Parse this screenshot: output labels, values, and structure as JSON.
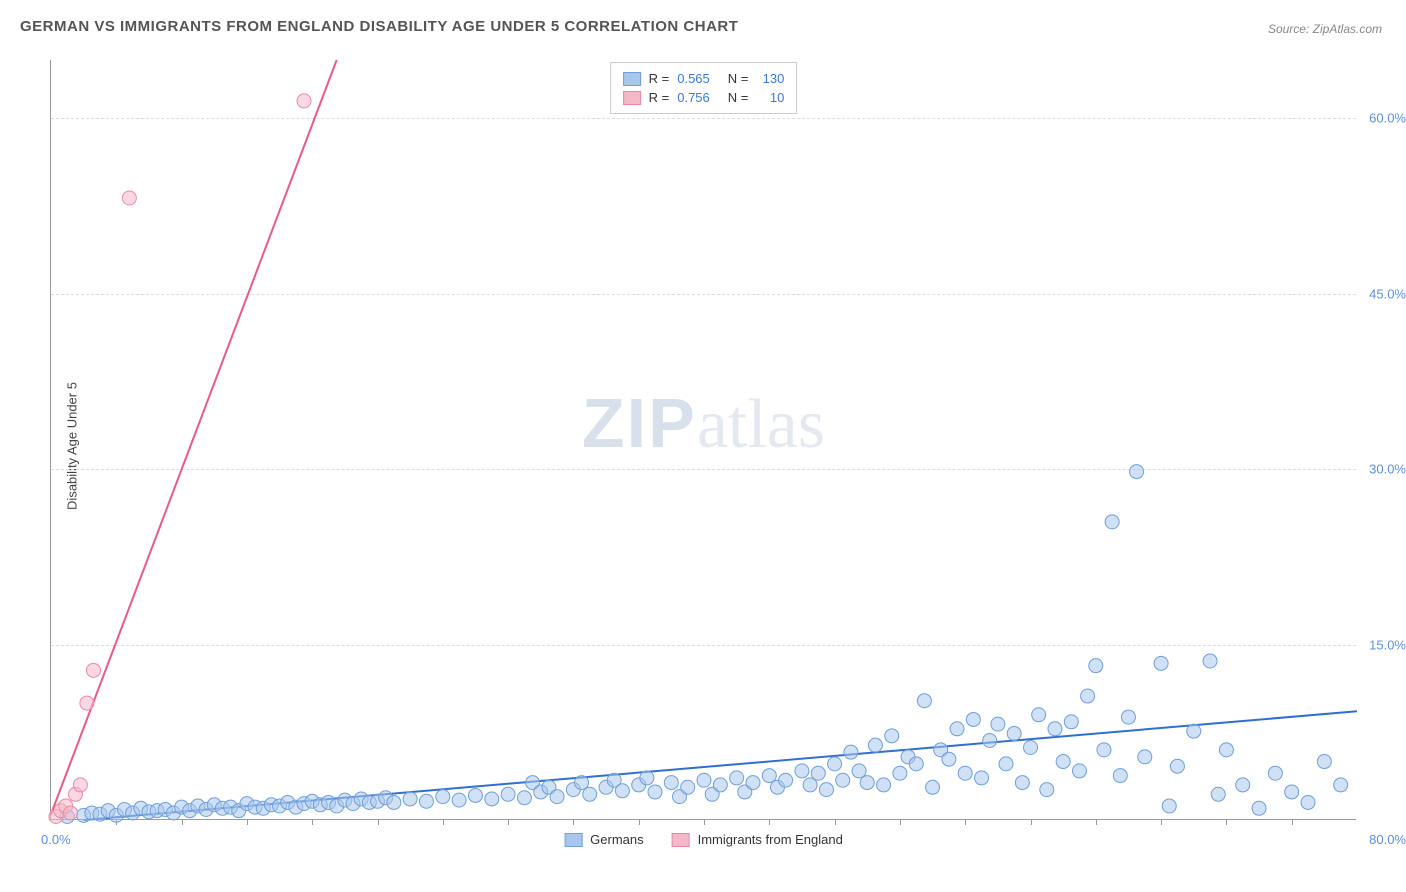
{
  "title": "GERMAN VS IMMIGRANTS FROM ENGLAND DISABILITY AGE UNDER 5 CORRELATION CHART",
  "source": "Source: ZipAtlas.com",
  "ylabel": "Disability Age Under 5",
  "watermark_zip": "ZIP",
  "watermark_atlas": "atlas",
  "chart": {
    "type": "scatter",
    "xlim": [
      0,
      80
    ],
    "ylim": [
      0,
      65
    ],
    "x_axis_label_left": "0.0%",
    "x_axis_label_right": "80.0%",
    "y_ticks": [
      15,
      30,
      45,
      60
    ],
    "y_tick_labels": [
      "15.0%",
      "30.0%",
      "45.0%",
      "60.0%"
    ],
    "x_minor_ticks": [
      4,
      8,
      12,
      16,
      20,
      24,
      28,
      32,
      36,
      40,
      44,
      48,
      52,
      56,
      60,
      64,
      68,
      72,
      76
    ],
    "background_color": "#ffffff",
    "grid_color": "#dddddd",
    "axis_color": "#999999",
    "series": [
      {
        "name": "Germans",
        "fill": "#a9c6ec",
        "stroke": "#6f9fd8",
        "fill_opacity": 0.55,
        "marker_radius": 7,
        "line_color": "#2e6fd1",
        "line_width": 2,
        "trend": {
          "x1": 2,
          "y1": 0,
          "x2": 80,
          "y2": 9.3
        },
        "R": "0.565",
        "N": "130",
        "points": [
          [
            1,
            0.3
          ],
          [
            2,
            0.4
          ],
          [
            2.5,
            0.6
          ],
          [
            3,
            0.5
          ],
          [
            3.5,
            0.8
          ],
          [
            4,
            0.4
          ],
          [
            4.5,
            0.9
          ],
          [
            5,
            0.6
          ],
          [
            5.5,
            1.0
          ],
          [
            6,
            0.7
          ],
          [
            6.5,
            0.8
          ],
          [
            7,
            0.9
          ],
          [
            7.5,
            0.6
          ],
          [
            8,
            1.1
          ],
          [
            8.5,
            0.8
          ],
          [
            9,
            1.2
          ],
          [
            9.5,
            0.9
          ],
          [
            10,
            1.3
          ],
          [
            10.5,
            1.0
          ],
          [
            11,
            1.1
          ],
          [
            11.5,
            0.8
          ],
          [
            12,
            1.4
          ],
          [
            12.5,
            1.1
          ],
          [
            13,
            1.0
          ],
          [
            13.5,
            1.3
          ],
          [
            14,
            1.2
          ],
          [
            14.5,
            1.5
          ],
          [
            15,
            1.1
          ],
          [
            15.5,
            1.4
          ],
          [
            16,
            1.6
          ],
          [
            16.5,
            1.3
          ],
          [
            17,
            1.5
          ],
          [
            17.5,
            1.2
          ],
          [
            18,
            1.7
          ],
          [
            18.5,
            1.4
          ],
          [
            19,
            1.8
          ],
          [
            19.5,
            1.5
          ],
          [
            20,
            1.6
          ],
          [
            20.5,
            1.9
          ],
          [
            21,
            1.5
          ],
          [
            22,
            1.8
          ],
          [
            23,
            1.6
          ],
          [
            24,
            2.0
          ],
          [
            25,
            1.7
          ],
          [
            26,
            2.1
          ],
          [
            27,
            1.8
          ],
          [
            28,
            2.2
          ],
          [
            29,
            1.9
          ],
          [
            29.5,
            3.2
          ],
          [
            30,
            2.4
          ],
          [
            30.5,
            2.8
          ],
          [
            31,
            2.0
          ],
          [
            32,
            2.6
          ],
          [
            32.5,
            3.2
          ],
          [
            33,
            2.2
          ],
          [
            34,
            2.8
          ],
          [
            34.5,
            3.4
          ],
          [
            35,
            2.5
          ],
          [
            36,
            3.0
          ],
          [
            36.5,
            3.6
          ],
          [
            37,
            2.4
          ],
          [
            38,
            3.2
          ],
          [
            38.5,
            2.0
          ],
          [
            39,
            2.8
          ],
          [
            40,
            3.4
          ],
          [
            40.5,
            2.2
          ],
          [
            41,
            3.0
          ],
          [
            42,
            3.6
          ],
          [
            42.5,
            2.4
          ],
          [
            43,
            3.2
          ],
          [
            44,
            3.8
          ],
          [
            44.5,
            2.8
          ],
          [
            45,
            3.4
          ],
          [
            46,
            4.2
          ],
          [
            46.5,
            3.0
          ],
          [
            47,
            4.0
          ],
          [
            47.5,
            2.6
          ],
          [
            48,
            4.8
          ],
          [
            48.5,
            3.4
          ],
          [
            49,
            5.8
          ],
          [
            49.5,
            4.2
          ],
          [
            50,
            3.2
          ],
          [
            50.5,
            6.4
          ],
          [
            51,
            3.0
          ],
          [
            51.5,
            7.2
          ],
          [
            52,
            4.0
          ],
          [
            52.5,
            5.4
          ],
          [
            53,
            4.8
          ],
          [
            53.5,
            10.2
          ],
          [
            54,
            2.8
          ],
          [
            54.5,
            6.0
          ],
          [
            55,
            5.2
          ],
          [
            55.5,
            7.8
          ],
          [
            56,
            4.0
          ],
          [
            56.5,
            8.6
          ],
          [
            57,
            3.6
          ],
          [
            57.5,
            6.8
          ],
          [
            58,
            8.2
          ],
          [
            58.5,
            4.8
          ],
          [
            59,
            7.4
          ],
          [
            59.5,
            3.2
          ],
          [
            60,
            6.2
          ],
          [
            60.5,
            9.0
          ],
          [
            61,
            2.6
          ],
          [
            61.5,
            7.8
          ],
          [
            62,
            5.0
          ],
          [
            62.5,
            8.4
          ],
          [
            63,
            4.2
          ],
          [
            63.5,
            10.6
          ],
          [
            64,
            13.2
          ],
          [
            64.5,
            6.0
          ],
          [
            65,
            25.5
          ],
          [
            65.5,
            3.8
          ],
          [
            66,
            8.8
          ],
          [
            66.5,
            29.8
          ],
          [
            67,
            5.4
          ],
          [
            68,
            13.4
          ],
          [
            68.5,
            1.2
          ],
          [
            69,
            4.6
          ],
          [
            70,
            7.6
          ],
          [
            71,
            13.6
          ],
          [
            71.5,
            2.2
          ],
          [
            72,
            6.0
          ],
          [
            73,
            3.0
          ],
          [
            74,
            1.0
          ],
          [
            75,
            4.0
          ],
          [
            76,
            2.4
          ],
          [
            77,
            1.5
          ],
          [
            78,
            5.0
          ],
          [
            79,
            3.0
          ]
        ]
      },
      {
        "name": "Immigrants from England",
        "fill": "#f5b8c8",
        "stroke": "#e88aa5",
        "fill_opacity": 0.55,
        "marker_radius": 7,
        "line_color": "#e75a8b",
        "line_width": 2,
        "trend": {
          "x1": 0,
          "y1": 0.5,
          "x2": 17.5,
          "y2": 65
        },
        "R": "0.756",
        "N": "10",
        "points": [
          [
            0.3,
            0.3
          ],
          [
            0.6,
            0.8
          ],
          [
            0.9,
            1.2
          ],
          [
            1.2,
            0.6
          ],
          [
            1.5,
            2.2
          ],
          [
            1.8,
            3.0
          ],
          [
            2.2,
            10.0
          ],
          [
            2.6,
            12.8
          ],
          [
            4.8,
            53.2
          ],
          [
            15.5,
            61.5
          ]
        ]
      }
    ],
    "legend_top": {
      "rows": [
        {
          "swatch_fill": "#a9c6ec",
          "swatch_stroke": "#6f9fd8",
          "r_label": "R =",
          "r_val": "0.565",
          "n_label": "N =",
          "n_val": "130"
        },
        {
          "swatch_fill": "#f5b8c8",
          "swatch_stroke": "#e88aa5",
          "r_label": "R =",
          "r_val": "0.756",
          "n_label": "N =",
          "n_val": "10"
        }
      ]
    },
    "legend_bottom": [
      {
        "swatch_fill": "#a9c6ec",
        "swatch_stroke": "#6f9fd8",
        "label": "Germans"
      },
      {
        "swatch_fill": "#f5b8c8",
        "swatch_stroke": "#e88aa5",
        "label": "Immigrants from England"
      }
    ]
  }
}
